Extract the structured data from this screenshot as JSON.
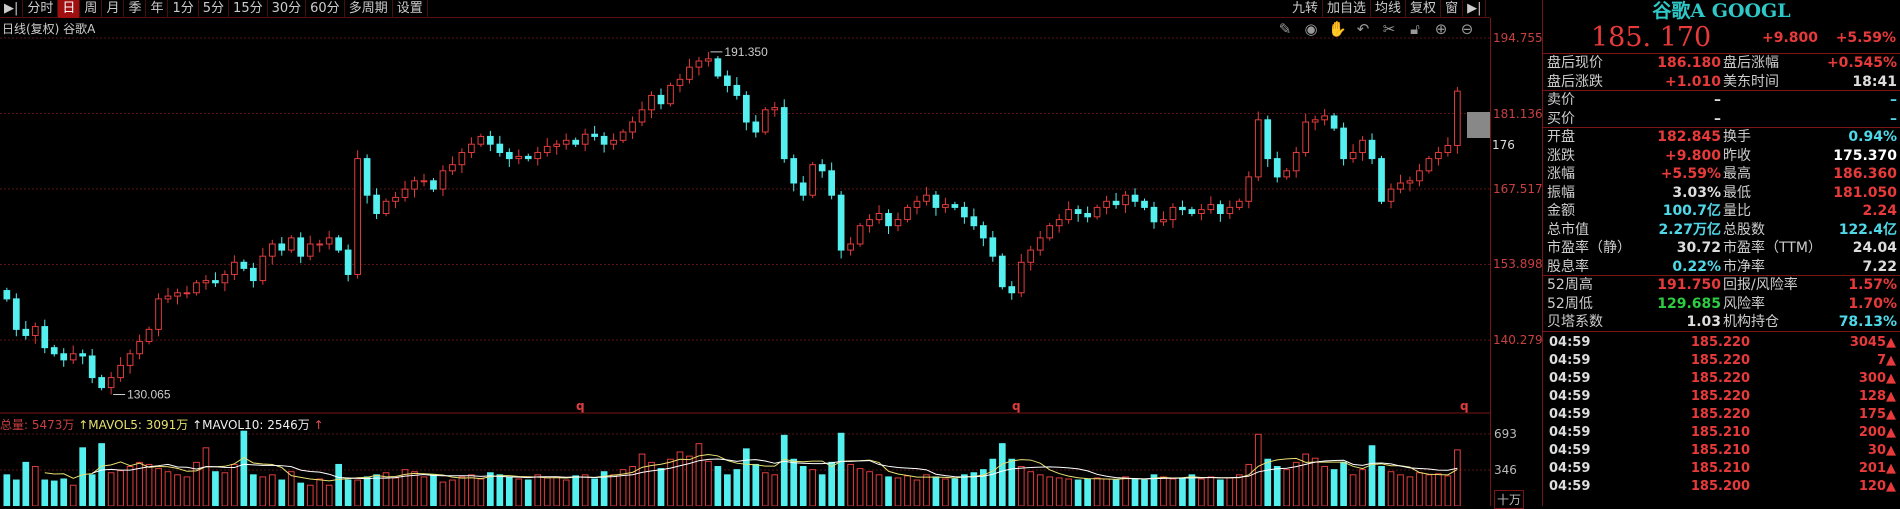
{
  "toolbar": {
    "left": [
      "分时",
      "日",
      "周",
      "月",
      "季",
      "年",
      "1分",
      "5分",
      "15分",
      "30分",
      "60分",
      "多周期",
      "设置"
    ],
    "active": "日",
    "right": [
      "九转",
      "加自选",
      "均线",
      "复权",
      "窗"
    ]
  },
  "tool_icons": [
    "pen-icon",
    "eye-icon",
    "hand-icon",
    "undo-icon",
    "scissors-icon",
    "lock-icon",
    "zoom-in-icon",
    "zoom-out-icon"
  ],
  "chart": {
    "subtitle": "日线(复权)  谷歌A",
    "y_ticks": [
      "194.755",
      "181.136",
      "167.517",
      "153.898",
      "140.279"
    ],
    "last_marker": "176",
    "high_label": "191.350",
    "low_label": "130.065",
    "event_marker": "q"
  },
  "chart_data": {
    "type": "candlestick",
    "ylim": [
      127,
      196
    ],
    "y_ticks": [
      194.755,
      181.136,
      167.517,
      153.898,
      140.279
    ],
    "high": 191.35,
    "low": 130.065,
    "closes": [
      147.7,
      142.2,
      141.1,
      142.7,
      138.9,
      137.8,
      136.7,
      137.8,
      137.4,
      133.5,
      131.7,
      133.5,
      135.7,
      137.8,
      140.0,
      142.2,
      147.7,
      148.2,
      148.8,
      148.8,
      150.6,
      151.0,
      150.6,
      152.1,
      154.3,
      153.2,
      151.0,
      155.4,
      157.6,
      156.5,
      158.7,
      155.4,
      157.6,
      157.6,
      158.7,
      156.5,
      152.1,
      173.0,
      166.4,
      163.1,
      165.3,
      166.0,
      167.5,
      169.0,
      169.0,
      167.5,
      170.8,
      171.9,
      174.1,
      175.6,
      177.0,
      175.6,
      174.1,
      173.0,
      173.4,
      173.0,
      174.1,
      175.2,
      175.6,
      176.3,
      175.6,
      177.4,
      177.0,
      175.6,
      176.3,
      177.8,
      179.6,
      181.8,
      184.4,
      182.9,
      186.2,
      187.3,
      189.5,
      190.6,
      191.0,
      187.9,
      186.2,
      184.4,
      179.6,
      177.8,
      181.8,
      182.2,
      173.0,
      168.6,
      166.4,
      171.9,
      170.8,
      166.4,
      156.5,
      157.6,
      160.9,
      162.0,
      163.1,
      160.9,
      162.0,
      164.2,
      165.3,
      166.4,
      164.2,
      164.7,
      164.2,
      162.5,
      160.9,
      158.7,
      155.4,
      149.9,
      148.8,
      154.3,
      156.5,
      158.7,
      160.9,
      162.0,
      163.8,
      163.1,
      162.5,
      164.2,
      165.3,
      164.7,
      166.4,
      165.3,
      164.2,
      161.6,
      162.0,
      164.2,
      163.8,
      163.1,
      163.8,
      164.7,
      163.1,
      164.2,
      165.3,
      169.7,
      180.0,
      173.0,
      169.7,
      170.8,
      174.1,
      179.6,
      180.0,
      180.7,
      178.5,
      173.0,
      174.1,
      176.3,
      173.0,
      165.3,
      167.5,
      168.6,
      169.0,
      170.8,
      173.0,
      174.1,
      175.37,
      185.17
    ],
    "volume": {
      "unit": "十万",
      "y_ticks": [
        693,
        346
      ],
      "values": [
        300,
        250,
        420,
        380,
        250,
        240,
        260,
        200,
        560,
        300,
        600,
        320,
        340,
        380,
        420,
        400,
        360,
        330,
        300,
        280,
        420,
        560,
        330,
        320,
        400,
        720,
        300,
        280,
        300,
        250,
        330,
        220,
        200,
        260,
        200,
        400,
        250,
        250,
        280,
        300,
        320,
        270,
        350,
        330,
        280,
        300,
        230,
        250,
        280,
        300,
        260,
        320,
        300,
        280,
        260,
        250,
        300,
        270,
        280,
        250,
        290,
        300,
        260,
        330,
        300,
        350,
        380,
        500,
        420,
        360,
        450,
        520,
        480,
        600,
        430,
        380,
        300,
        350,
        550,
        400,
        320,
        300,
        680,
        450,
        380,
        350,
        300,
        420,
        700,
        400,
        360,
        330,
        300,
        280,
        270,
        290,
        250,
        300,
        280,
        260,
        260,
        300,
        320,
        350,
        450,
        600,
        450,
        380,
        330,
        300,
        280,
        270,
        260,
        250,
        260,
        270,
        260,
        250,
        280,
        260,
        250,
        300,
        280,
        260,
        270,
        300,
        260,
        280,
        250,
        270,
        300,
        400,
        690,
        450,
        380,
        350,
        420,
        500,
        460,
        380,
        350,
        420,
        300,
        350,
        580,
        380,
        330,
        300,
        280,
        320,
        300,
        310,
        290,
        540
      ]
    }
  },
  "volume_header": {
    "total_label": "总量:",
    "total": "5473万",
    "ma5": "↑MAVOL5: 3091万",
    "ma10": "↑MAVOL10: 2546万",
    "arrow": "↑",
    "unit": "十万",
    "ticks": [
      "693",
      "346"
    ]
  },
  "colors": {
    "up": "#e03c3c",
    "down": "#54f0f0",
    "ma5": "#e8e070",
    "ma10": "#ffffff",
    "grid": "#5a1414"
  },
  "quote": {
    "title": "谷歌A GOOGL",
    "price": "185. 170",
    "change": "+9.800",
    "percent": "+5.59%",
    "rows": [
      {
        "l1": "盘后现价",
        "v1": "186.180",
        "c1": "#e83a3a",
        "l2": "盘后涨幅",
        "v2": "+0.545%",
        "c2": "#e83a3a"
      },
      {
        "l1": "盘后涨跌",
        "v1": "+1.010",
        "c1": "#e83a3a",
        "l2": "美东时间",
        "v2": "18:41",
        "c2": "#ddd",
        "sep": true
      },
      {
        "l1": "卖价",
        "v1": "–",
        "c1": "#ddd",
        "l2": "",
        "v2": "–",
        "c2": "#4fd8e8"
      },
      {
        "l1": "买价",
        "v1": "–",
        "c1": "#ddd",
        "l2": "",
        "v2": "–",
        "c2": "#4fd8e8",
        "sep": true
      },
      {
        "l1": "开盘",
        "v1": "182.845",
        "c1": "#e83a3a",
        "l2": "换手",
        "v2": "0.94%",
        "c2": "#4fd8e8"
      },
      {
        "l1": "涨跌",
        "v1": "+9.800",
        "c1": "#e83a3a",
        "l2": "昨收",
        "v2": "175.370",
        "c2": "#fff"
      },
      {
        "l1": "涨幅",
        "v1": "+5.59%",
        "c1": "#e83a3a",
        "l2": "最高",
        "v2": "186.360",
        "c2": "#e83a3a"
      },
      {
        "l1": "振幅",
        "v1": "3.03%",
        "c1": "#ddd",
        "l2": "最低",
        "v2": "181.050",
        "c2": "#e83a3a"
      },
      {
        "l1": "金额",
        "v1": "100.7亿",
        "c1": "#4fd8e8",
        "l2": "量比",
        "v2": "2.24",
        "c2": "#e83a3a"
      },
      {
        "l1": "总市值",
        "v1": "2.27万亿",
        "c1": "#4fd8e8",
        "l2": "总股数",
        "v2": "122.4亿",
        "c2": "#4fd8e8"
      },
      {
        "l1": "市盈率（静）",
        "v1": "30.72",
        "c1": "#ddd",
        "l2": "市盈率（TTM）",
        "v2": "24.04",
        "c2": "#ddd"
      },
      {
        "l1": "股息率",
        "v1": "0.22%",
        "c1": "#4fd8e8",
        "l2": "市净率",
        "v2": "7.22",
        "c2": "#ddd",
        "sep": true
      },
      {
        "l1": "52周高",
        "v1": "191.750",
        "c1": "#e83a3a",
        "l2": "回报/风险率",
        "v2": "1.57%",
        "c2": "#e83a3a"
      },
      {
        "l1": "52周低",
        "v1": "129.685",
        "c1": "#2ecc40",
        "l2": "风险率",
        "v2": "1.70%",
        "c2": "#e83a3a"
      },
      {
        "l1": "贝塔系数",
        "v1": "1.03",
        "c1": "#ddd",
        "l2": "机构持仓",
        "v2": "78.13%",
        "c2": "#4fd8e8",
        "sep": true
      }
    ],
    "trades": [
      {
        "time": "04:59",
        "price": "185.220",
        "vol": "3045"
      },
      {
        "time": "04:59",
        "price": "185.220",
        "vol": "7"
      },
      {
        "time": "04:59",
        "price": "185.220",
        "vol": "300"
      },
      {
        "time": "04:59",
        "price": "185.220",
        "vol": "128"
      },
      {
        "time": "04:59",
        "price": "185.220",
        "vol": "175"
      },
      {
        "time": "04:59",
        "price": "185.210",
        "vol": "200"
      },
      {
        "time": "04:59",
        "price": "185.210",
        "vol": "30"
      },
      {
        "time": "04:59",
        "price": "185.210",
        "vol": "201"
      },
      {
        "time": "04:59",
        "price": "185.200",
        "vol": "120"
      }
    ]
  }
}
